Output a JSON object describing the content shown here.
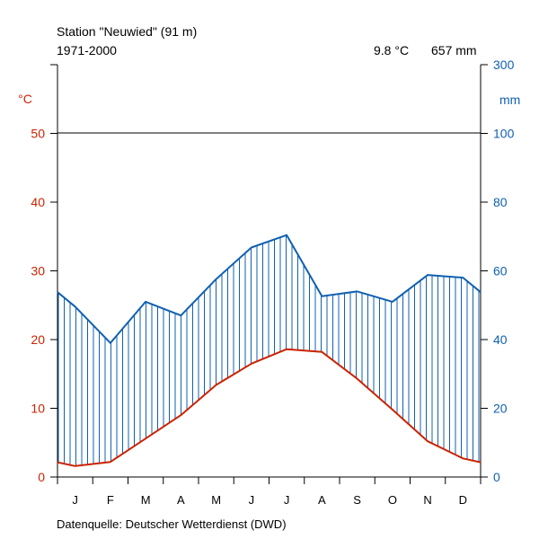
{
  "header": {
    "station": "Station \"Neuwied\" (91 m)",
    "period": "1971-2000",
    "mean_temp": "9.8 °C",
    "annual_precip": "657 mm"
  },
  "footer": {
    "source": "Datenquelle: Deutscher Wetterdienst (DWD)"
  },
  "colors": {
    "temperature": "#cc2200",
    "precipitation": "#1060b0",
    "axis": "#000000"
  },
  "chart_data": {
    "type": "line",
    "categories": [
      "J",
      "F",
      "M",
      "A",
      "M",
      "J",
      "J",
      "A",
      "S",
      "O",
      "N",
      "D"
    ],
    "series": [
      {
        "axis": "left",
        "values": [
          1.6,
          2.2,
          5.6,
          9.0,
          13.4,
          16.5,
          18.6,
          18.2,
          14.3,
          9.8,
          5.2,
          2.7
        ]
      },
      {
        "axis": "right",
        "values": [
          49.6,
          39.0,
          51.0,
          47.0,
          57.6,
          66.8,
          70.4,
          52.6,
          54.0,
          51.0,
          58.8,
          58.0
        ]
      }
    ],
    "left_axis": {
      "label": "°C",
      "ticks": [
        "0",
        "10",
        "20",
        "30",
        "40",
        "50"
      ],
      "range": [
        0,
        60
      ]
    },
    "right_axis": {
      "label": "mm",
      "ticks": [
        "0",
        "20",
        "40",
        "60",
        "80",
        "100",
        "300"
      ],
      "range": [
        0,
        300
      ],
      "scale_break": 100
    },
    "reference_line": 50,
    "grid": false,
    "legend": "none"
  }
}
